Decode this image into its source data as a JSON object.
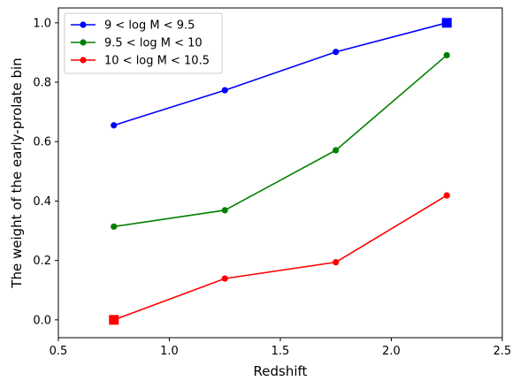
{
  "chart_data": {
    "type": "line",
    "xlabel": "Redshift",
    "ylabel": "The weight of the early-prolate bin",
    "xlim": [
      0.5,
      2.5
    ],
    "ylim": [
      -0.06,
      1.05
    ],
    "xticks": [
      "0.5",
      "1.0",
      "1.5",
      "2.0",
      "2.5"
    ],
    "xtick_values": [
      0.5,
      1.0,
      1.5,
      2.0,
      2.5
    ],
    "yticks": [
      "0.0",
      "0.2",
      "0.4",
      "0.6",
      "0.8",
      "1.0"
    ],
    "ytick_values": [
      0.0,
      0.2,
      0.4,
      0.6,
      0.8,
      1.0
    ],
    "grid": false,
    "legend_position": "top-left",
    "series": [
      {
        "name": "9 < log M < 9.5",
        "color": "#0000ff",
        "x": [
          0.75,
          1.25,
          1.75,
          2.25
        ],
        "y": [
          0.655,
          0.773,
          0.902,
          1.0
        ],
        "markers": [
          "circle",
          "circle",
          "circle",
          "square"
        ]
      },
      {
        "name": "9.5 < log M < 10",
        "color": "#008000",
        "x": [
          0.75,
          1.25,
          1.75,
          2.25
        ],
        "y": [
          0.314,
          0.369,
          0.571,
          0.891
        ],
        "markers": [
          "circle",
          "circle",
          "circle",
          "circle"
        ]
      },
      {
        "name": "10 < log M < 10.5",
        "color": "#ff0000",
        "x": [
          0.75,
          1.25,
          1.75,
          2.25
        ],
        "y": [
          0.0,
          0.139,
          0.194,
          0.419
        ],
        "markers": [
          "square",
          "circle",
          "circle",
          "circle"
        ]
      }
    ]
  }
}
